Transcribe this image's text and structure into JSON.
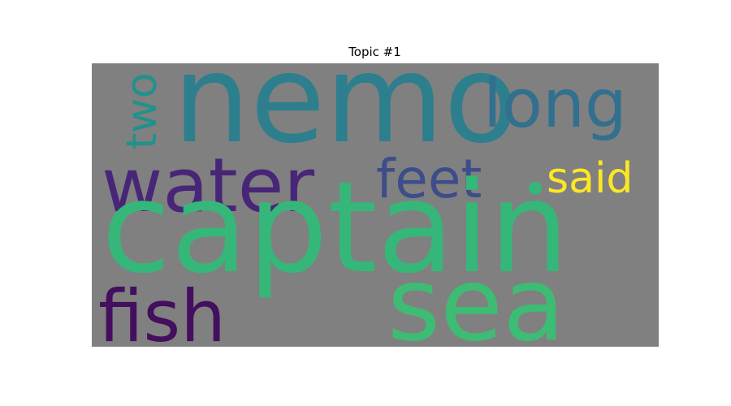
{
  "figure": {
    "title": "Topic #1"
  },
  "cloud": {
    "background_color": "#808080",
    "words": {
      "nemo": {
        "text": "nemo",
        "color": "#2d7f8e"
      },
      "long": {
        "text": "long",
        "color": "#31708e"
      },
      "two": {
        "text": "two",
        "color": "#21918c"
      },
      "water": {
        "text": "water",
        "color": "#482677"
      },
      "feet": {
        "text": "feet",
        "color": "#3d4d8a"
      },
      "said": {
        "text": "said",
        "color": "#fde725"
      },
      "captain": {
        "text": "captain",
        "color": "#35b779"
      },
      "sea": {
        "text": "sea",
        "color": "#3dbc74"
      },
      "fish": {
        "text": "fish",
        "color": "#440f5e"
      }
    },
    "dot_color": "#35b779"
  }
}
